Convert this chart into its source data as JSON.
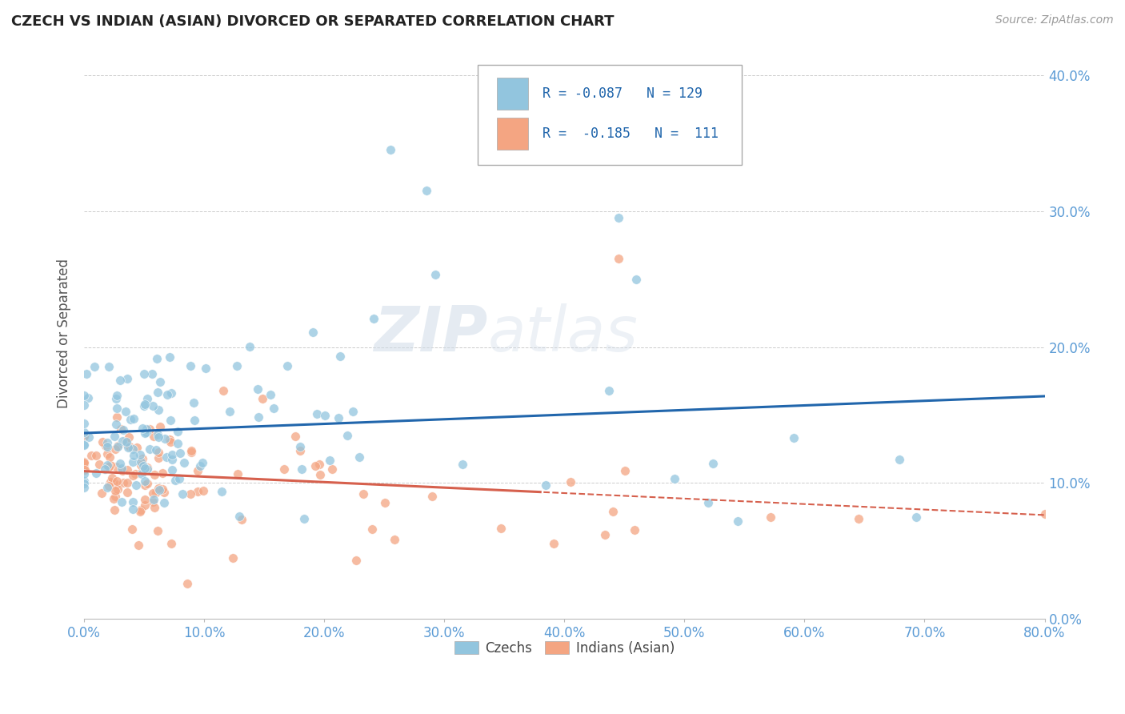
{
  "title": "CZECH VS INDIAN (ASIAN) DIVORCED OR SEPARATED CORRELATION CHART",
  "source": "Source: ZipAtlas.com",
  "ylabel": "Divorced or Separated",
  "xlim": [
    0.0,
    0.8
  ],
  "ylim": [
    0.0,
    0.42
  ],
  "ytick_vals": [
    0.0,
    0.1,
    0.2,
    0.3,
    0.4
  ],
  "ytick_labels": [
    "0.0%",
    "10.0%",
    "20.0%",
    "30.0%",
    "40.0%"
  ],
  "xtick_vals": [
    0.0,
    0.1,
    0.2,
    0.3,
    0.4,
    0.5,
    0.6,
    0.7,
    0.8
  ],
  "xtick_labels": [
    "0.0%",
    "10.0%",
    "20.0%",
    "30.0%",
    "40.0%",
    "50.0%",
    "60.0%",
    "70.0%",
    "80.0%"
  ],
  "legend_labels": [
    "Czechs",
    "Indians (Asian)"
  ],
  "legend_r": [
    "R = -0.087",
    "R =  -0.185"
  ],
  "legend_n": [
    "N = 129",
    "N =  111"
  ],
  "czech_color": "#92c5de",
  "indian_color": "#f4a582",
  "czech_line_color": "#2166ac",
  "indian_line_solid_color": "#d6604d",
  "indian_line_dash_color": "#d6604d",
  "background_color": "#ffffff",
  "watermark": "ZIPatlas",
  "tick_color": "#5b9bd5",
  "title_color": "#222222",
  "source_color": "#999999",
  "ylabel_color": "#555555",
  "grid_color": "#cccccc",
  "legend_text_color": "#2166ac",
  "czech_R": -0.087,
  "czech_N": 129,
  "indian_R": -0.185,
  "indian_N": 111
}
